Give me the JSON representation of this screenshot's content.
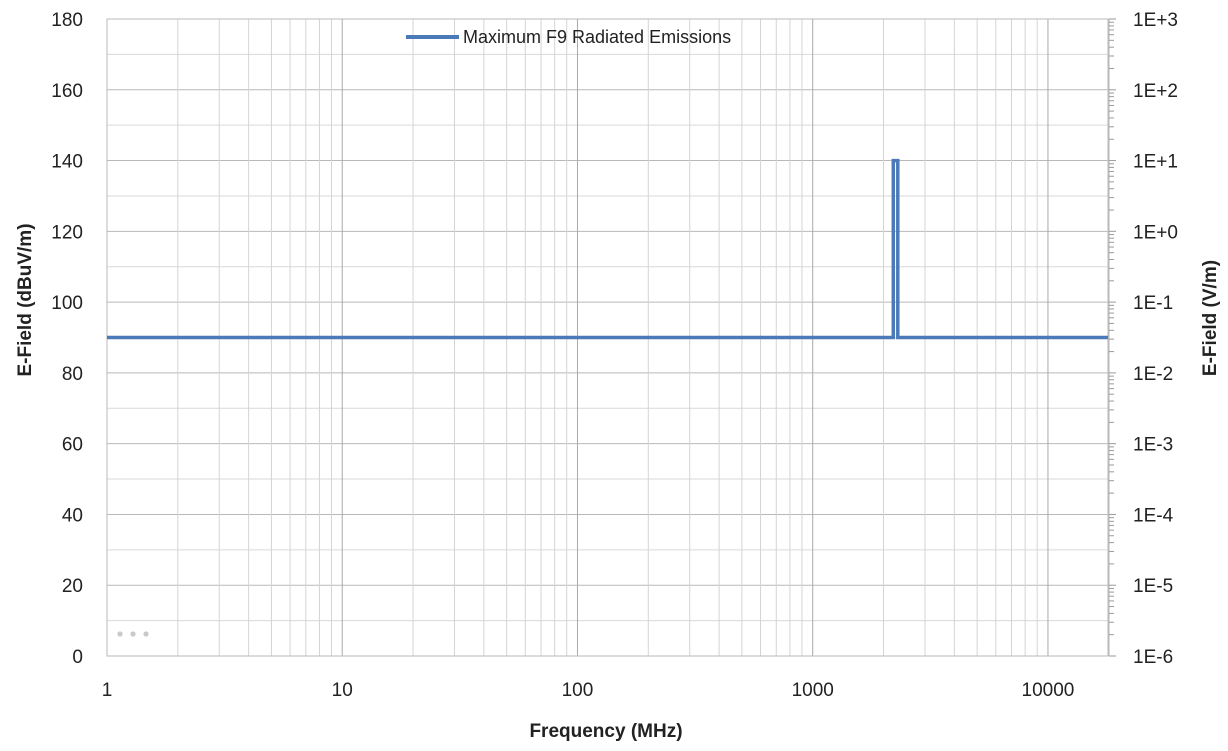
{
  "chart_data": {
    "type": "line",
    "series": [
      {
        "name": "Maximum F9 Radiated Emissions",
        "color": "#4a7ab8",
        "x": [
          1,
          2200,
          2200,
          2300,
          2300,
          18000
        ],
        "y": [
          90,
          90,
          140,
          140,
          90,
          90
        ]
      }
    ],
    "xlabel": "Frequency (MHz)",
    "ylabel": "E-Field (dBuV/m)",
    "y2label": "E-Field (V/m)",
    "xscale": "log",
    "xlim": [
      1,
      18000
    ],
    "ylim": [
      0,
      180
    ],
    "x_tick_labels": [
      "1",
      "10",
      "100",
      "1000",
      "10000"
    ],
    "y_tick_labels": [
      "0",
      "20",
      "40",
      "60",
      "80",
      "100",
      "120",
      "140",
      "160",
      "180"
    ],
    "y2_tick_labels": [
      "1E-6",
      "1E-5",
      "1E-4",
      "1E-3",
      "1E-2",
      "1E-1",
      "1E+0",
      "1E+1",
      "1E+2",
      "1E+3"
    ],
    "grid": true,
    "legend_position": "top-center"
  }
}
